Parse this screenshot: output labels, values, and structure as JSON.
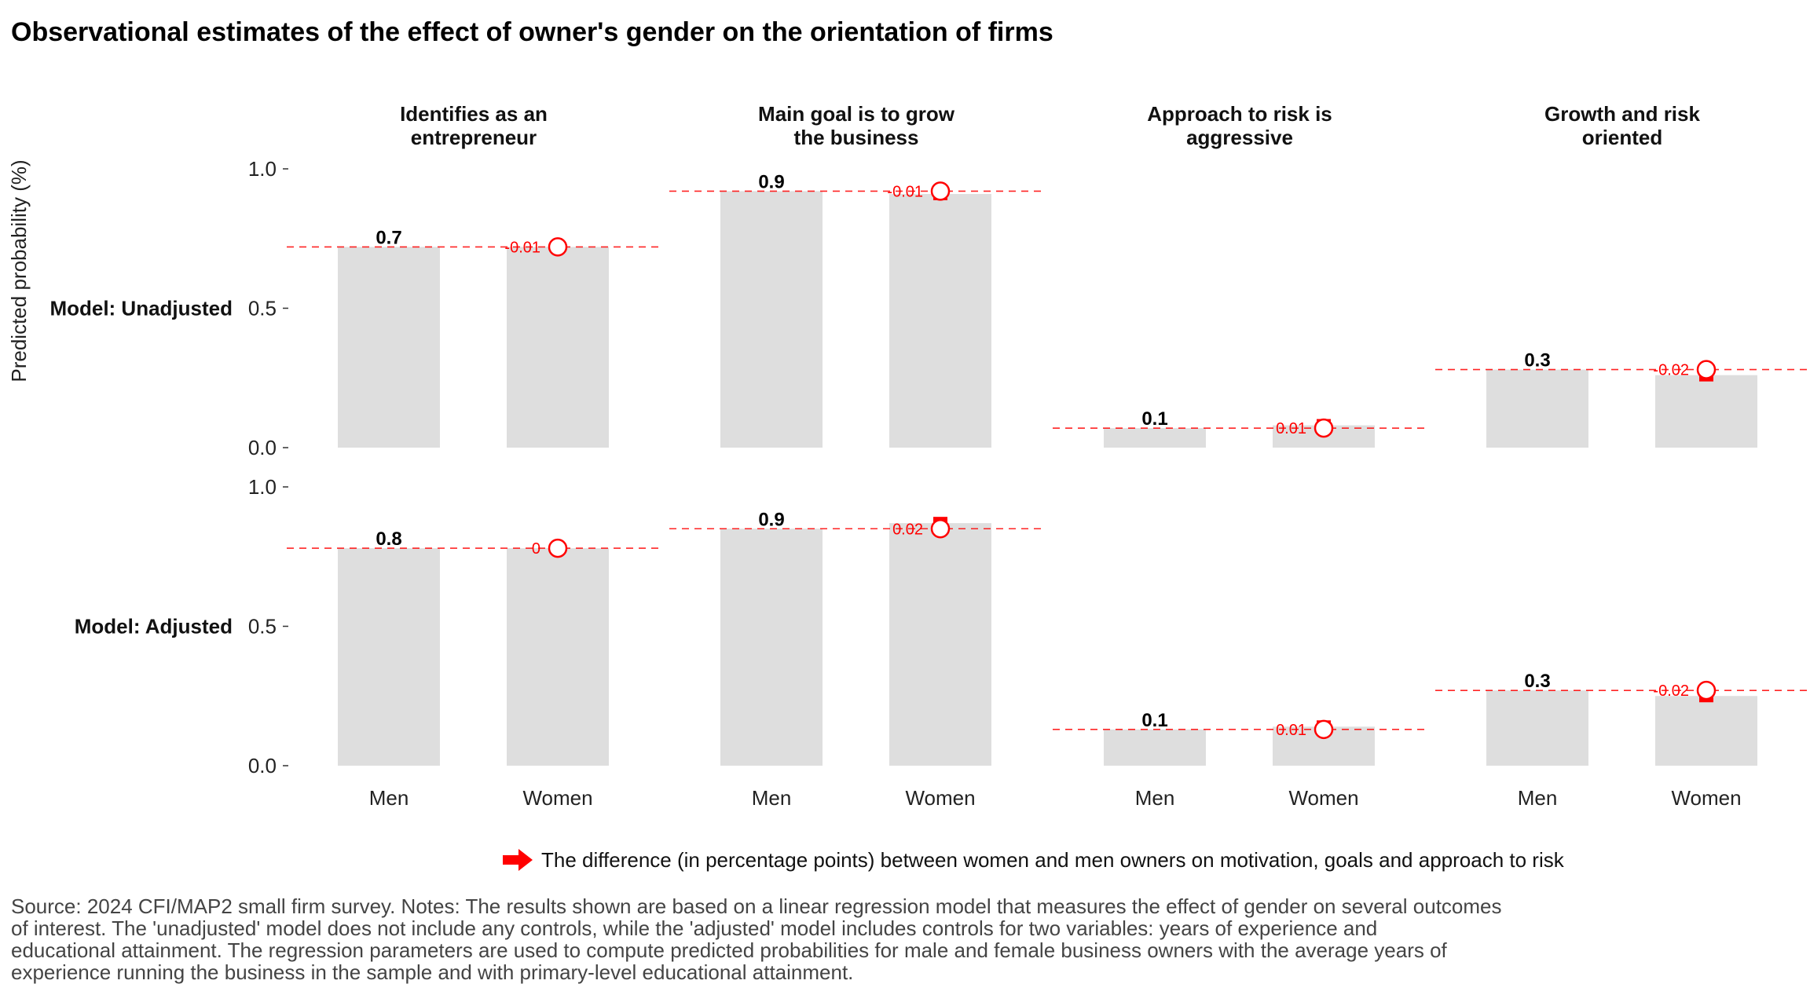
{
  "chart_data": {
    "type": "bar",
    "title": "Observational estimates of the effect of owner's gender on the orientation of firms",
    "ylabel": "Predicted probability (%)",
    "ylim": [
      0,
      1
    ],
    "yticks": [
      "0.0",
      "0.5",
      "1.0"
    ],
    "yticks_values": [
      0,
      0.5,
      1
    ],
    "categories": [
      "Men",
      "Women"
    ],
    "facet_columns": [
      {
        "title_lines": [
          "Identifies as an",
          "entrepreneur"
        ]
      },
      {
        "title_lines": [
          "Main goal is to grow",
          "the business"
        ]
      },
      {
        "title_lines": [
          "Approach to risk is",
          "aggressive"
        ]
      },
      {
        "title_lines": [
          "Growth and risk",
          "oriented"
        ]
      }
    ],
    "facet_rows": [
      {
        "label": "Model: Unadjusted"
      },
      {
        "label": "Model: Adjusted"
      }
    ],
    "panels": [
      [
        {
          "men": 0.72,
          "women": 0.72,
          "men_label": "0.7",
          "diff_label": "-0.01"
        },
        {
          "men": 0.92,
          "women": 0.91,
          "men_label": "0.9",
          "diff_label": "-0.01"
        },
        {
          "men": 0.07,
          "women": 0.08,
          "men_label": "0.1",
          "diff_label": "0.01"
        },
        {
          "men": 0.28,
          "women": 0.26,
          "men_label": "0.3",
          "diff_label": "-0.02"
        }
      ],
      [
        {
          "men": 0.78,
          "women": 0.78,
          "men_label": "0.8",
          "diff_label": "0"
        },
        {
          "men": 0.85,
          "women": 0.87,
          "men_label": "0.9",
          "diff_label": "0.02"
        },
        {
          "men": 0.13,
          "women": 0.14,
          "men_label": "0.1",
          "diff_label": "0.01"
        },
        {
          "men": 0.27,
          "women": 0.25,
          "men_label": "0.3",
          "diff_label": "-0.02"
        }
      ]
    ],
    "colors": {
      "bar": "#dedede",
      "accent": "#ff0000"
    },
    "grid": false,
    "legend": {
      "placement": "bottom",
      "text": "The difference (in percentage points) between women and men owners on motivation, goals and approach to risk"
    },
    "note_lines": [
      "Source: 2024 CFI/MAP2 small firm survey. Notes: The results shown are based on a linear regression model that measures the effect of gender on several outcomes",
      "of interest. The 'unadjusted' model does not include any controls, while the 'adjusted' model includes controls for two variables: years of experience and",
      "educational attainment. The regression parameters are used to compute predicted probabilities for male and female business owners with the average years of",
      "experience running the business in the sample and with primary-level educational attainment."
    ]
  }
}
